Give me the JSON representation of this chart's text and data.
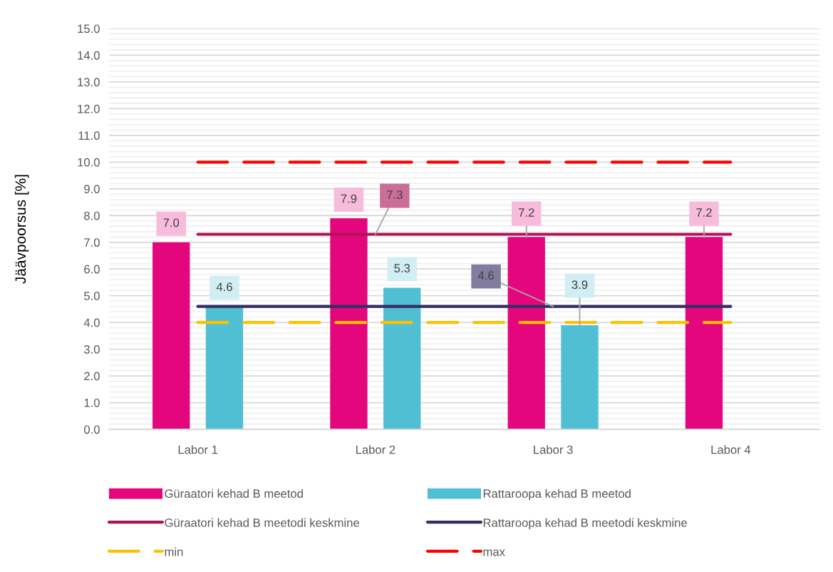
{
  "chart_data": {
    "type": "bar",
    "ylabel": "Jäävpoorsus [%]",
    "categories": [
      "Labor 1",
      "Labor 2",
      "Labor 3",
      "Labor 4"
    ],
    "series": [
      {
        "name": "Güraatori kehad B meetod",
        "color": "#e3067d",
        "values": [
          7.0,
          7.9,
          7.2,
          7.2
        ],
        "value_labels": [
          "7.0",
          "7.9",
          "7.2",
          "7.2"
        ]
      },
      {
        "name": "Rattaroopa kehad B meetod",
        "color": "#50bfd3",
        "values": [
          4.6,
          5.3,
          3.9,
          null
        ],
        "value_labels": [
          "4.6",
          "5.3",
          "3.9",
          null
        ]
      },
      {
        "name": "Güraatori kehad B meetodi keskmine",
        "type": "line",
        "color": "#ad1457",
        "line_style": "solid",
        "values": [
          7.3,
          7.3,
          7.3,
          7.3
        ],
        "value_labels": [
          null,
          "7.3",
          null,
          null
        ]
      },
      {
        "name": "Rattaroopa kehad B meetodi keskmine",
        "type": "line",
        "color": "#352d64",
        "line_style": "solid",
        "values": [
          4.6,
          4.6,
          4.6,
          4.6
        ],
        "value_labels": [
          null,
          null,
          "4.6",
          null
        ]
      },
      {
        "name": "min",
        "type": "line",
        "color": "#ffc000",
        "line_style": "dashed",
        "values": [
          4.0,
          4.0,
          4.0,
          4.0
        ]
      },
      {
        "name": "max",
        "type": "line",
        "color": "#ff0000",
        "line_style": "dashed",
        "values": [
          10.0,
          10.0,
          10.0,
          10.0
        ]
      }
    ],
    "ylim": [
      0,
      15
    ],
    "yticks": [
      {
        "value": 0,
        "label": "0.0"
      },
      {
        "value": 1,
        "label": "1.0"
      },
      {
        "value": 2,
        "label": "2.0"
      },
      {
        "value": 3,
        "label": "3.0"
      },
      {
        "value": 4,
        "label": "4.0"
      },
      {
        "value": 5,
        "label": "5.0"
      },
      {
        "value": 6,
        "label": "6.0"
      },
      {
        "value": 7,
        "label": "7.0"
      },
      {
        "value": 8,
        "label": "8.0"
      },
      {
        "value": 9,
        "label": "9.0"
      },
      {
        "value": 10,
        "label": "10.0"
      },
      {
        "value": 11,
        "label": "11.0"
      },
      {
        "value": 12,
        "label": "12.0"
      },
      {
        "value": 13,
        "label": "13.0"
      },
      {
        "value": 14,
        "label": "14.0"
      },
      {
        "value": 15,
        "label": "15.0"
      },
      {
        "value": 0.2,
        "label": null
      },
      {
        "value": 0.4,
        "label": null
      },
      {
        "value": 0.6,
        "label": null
      },
      {
        "value": 0.8,
        "label": null
      },
      {
        "value": 1.2,
        "label": null
      },
      {
        "value": 1.4,
        "label": null
      },
      {
        "value": 1.6,
        "label": null
      },
      {
        "value": 1.8,
        "label": null
      },
      {
        "value": 2.2,
        "label": null
      },
      {
        "value": 2.4,
        "label": null
      },
      {
        "value": 2.6,
        "label": null
      },
      {
        "value": 2.8,
        "label": null
      },
      {
        "value": 3.2,
        "label": null
      },
      {
        "value": 3.4,
        "label": null
      },
      {
        "value": 3.6,
        "label": null
      },
      {
        "value": 3.8,
        "label": null
      },
      {
        "value": 4.2,
        "label": null
      },
      {
        "value": 4.4,
        "label": null
      },
      {
        "value": 4.6,
        "label": null
      },
      {
        "value": 4.8,
        "label": null
      },
      {
        "value": 5.2,
        "label": null
      },
      {
        "value": 5.4,
        "label": null
      },
      {
        "value": 5.6,
        "label": null
      },
      {
        "value": 5.8,
        "label": null
      },
      {
        "value": 6.2,
        "label": null
      },
      {
        "value": 6.4,
        "label": null
      },
      {
        "value": 6.6,
        "label": null
      },
      {
        "value": 6.8,
        "label": null
      },
      {
        "value": 7.2,
        "label": null
      },
      {
        "value": 7.4,
        "label": null
      },
      {
        "value": 7.6,
        "label": null
      },
      {
        "value": 7.8,
        "label": null
      },
      {
        "value": 8.2,
        "label": null
      },
      {
        "value": 8.4,
        "label": null
      },
      {
        "value": 8.6,
        "label": null
      },
      {
        "value": 8.8,
        "label": null
      },
      {
        "value": 9.2,
        "label": null
      },
      {
        "value": 9.4,
        "label": null
      },
      {
        "value": 9.6,
        "label": null
      },
      {
        "value": 9.8,
        "label": null
      },
      {
        "value": 10.2,
        "label": null
      },
      {
        "value": 10.4,
        "label": null
      },
      {
        "value": 10.6,
        "label": null
      },
      {
        "value": 10.8,
        "label": null
      },
      {
        "value": 11.2,
        "label": null
      },
      {
        "value": 11.4,
        "label": null
      },
      {
        "value": 11.6,
        "label": null
      },
      {
        "value": 11.8,
        "label": null
      },
      {
        "value": 12.2,
        "label": null
      },
      {
        "value": 12.4,
        "label": null
      },
      {
        "value": 12.6,
        "label": null
      },
      {
        "value": 12.8,
        "label": null
      },
      {
        "value": 13.2,
        "label": null
      },
      {
        "value": 13.4,
        "label": null
      },
      {
        "value": 13.6,
        "label": null
      },
      {
        "value": 13.8,
        "label": null
      },
      {
        "value": 14.2,
        "label": null
      },
      {
        "value": 14.4,
        "label": null
      },
      {
        "value": 14.6,
        "label": null
      },
      {
        "value": 14.8,
        "label": null
      }
    ],
    "grid": "y",
    "legend": "bottom"
  }
}
